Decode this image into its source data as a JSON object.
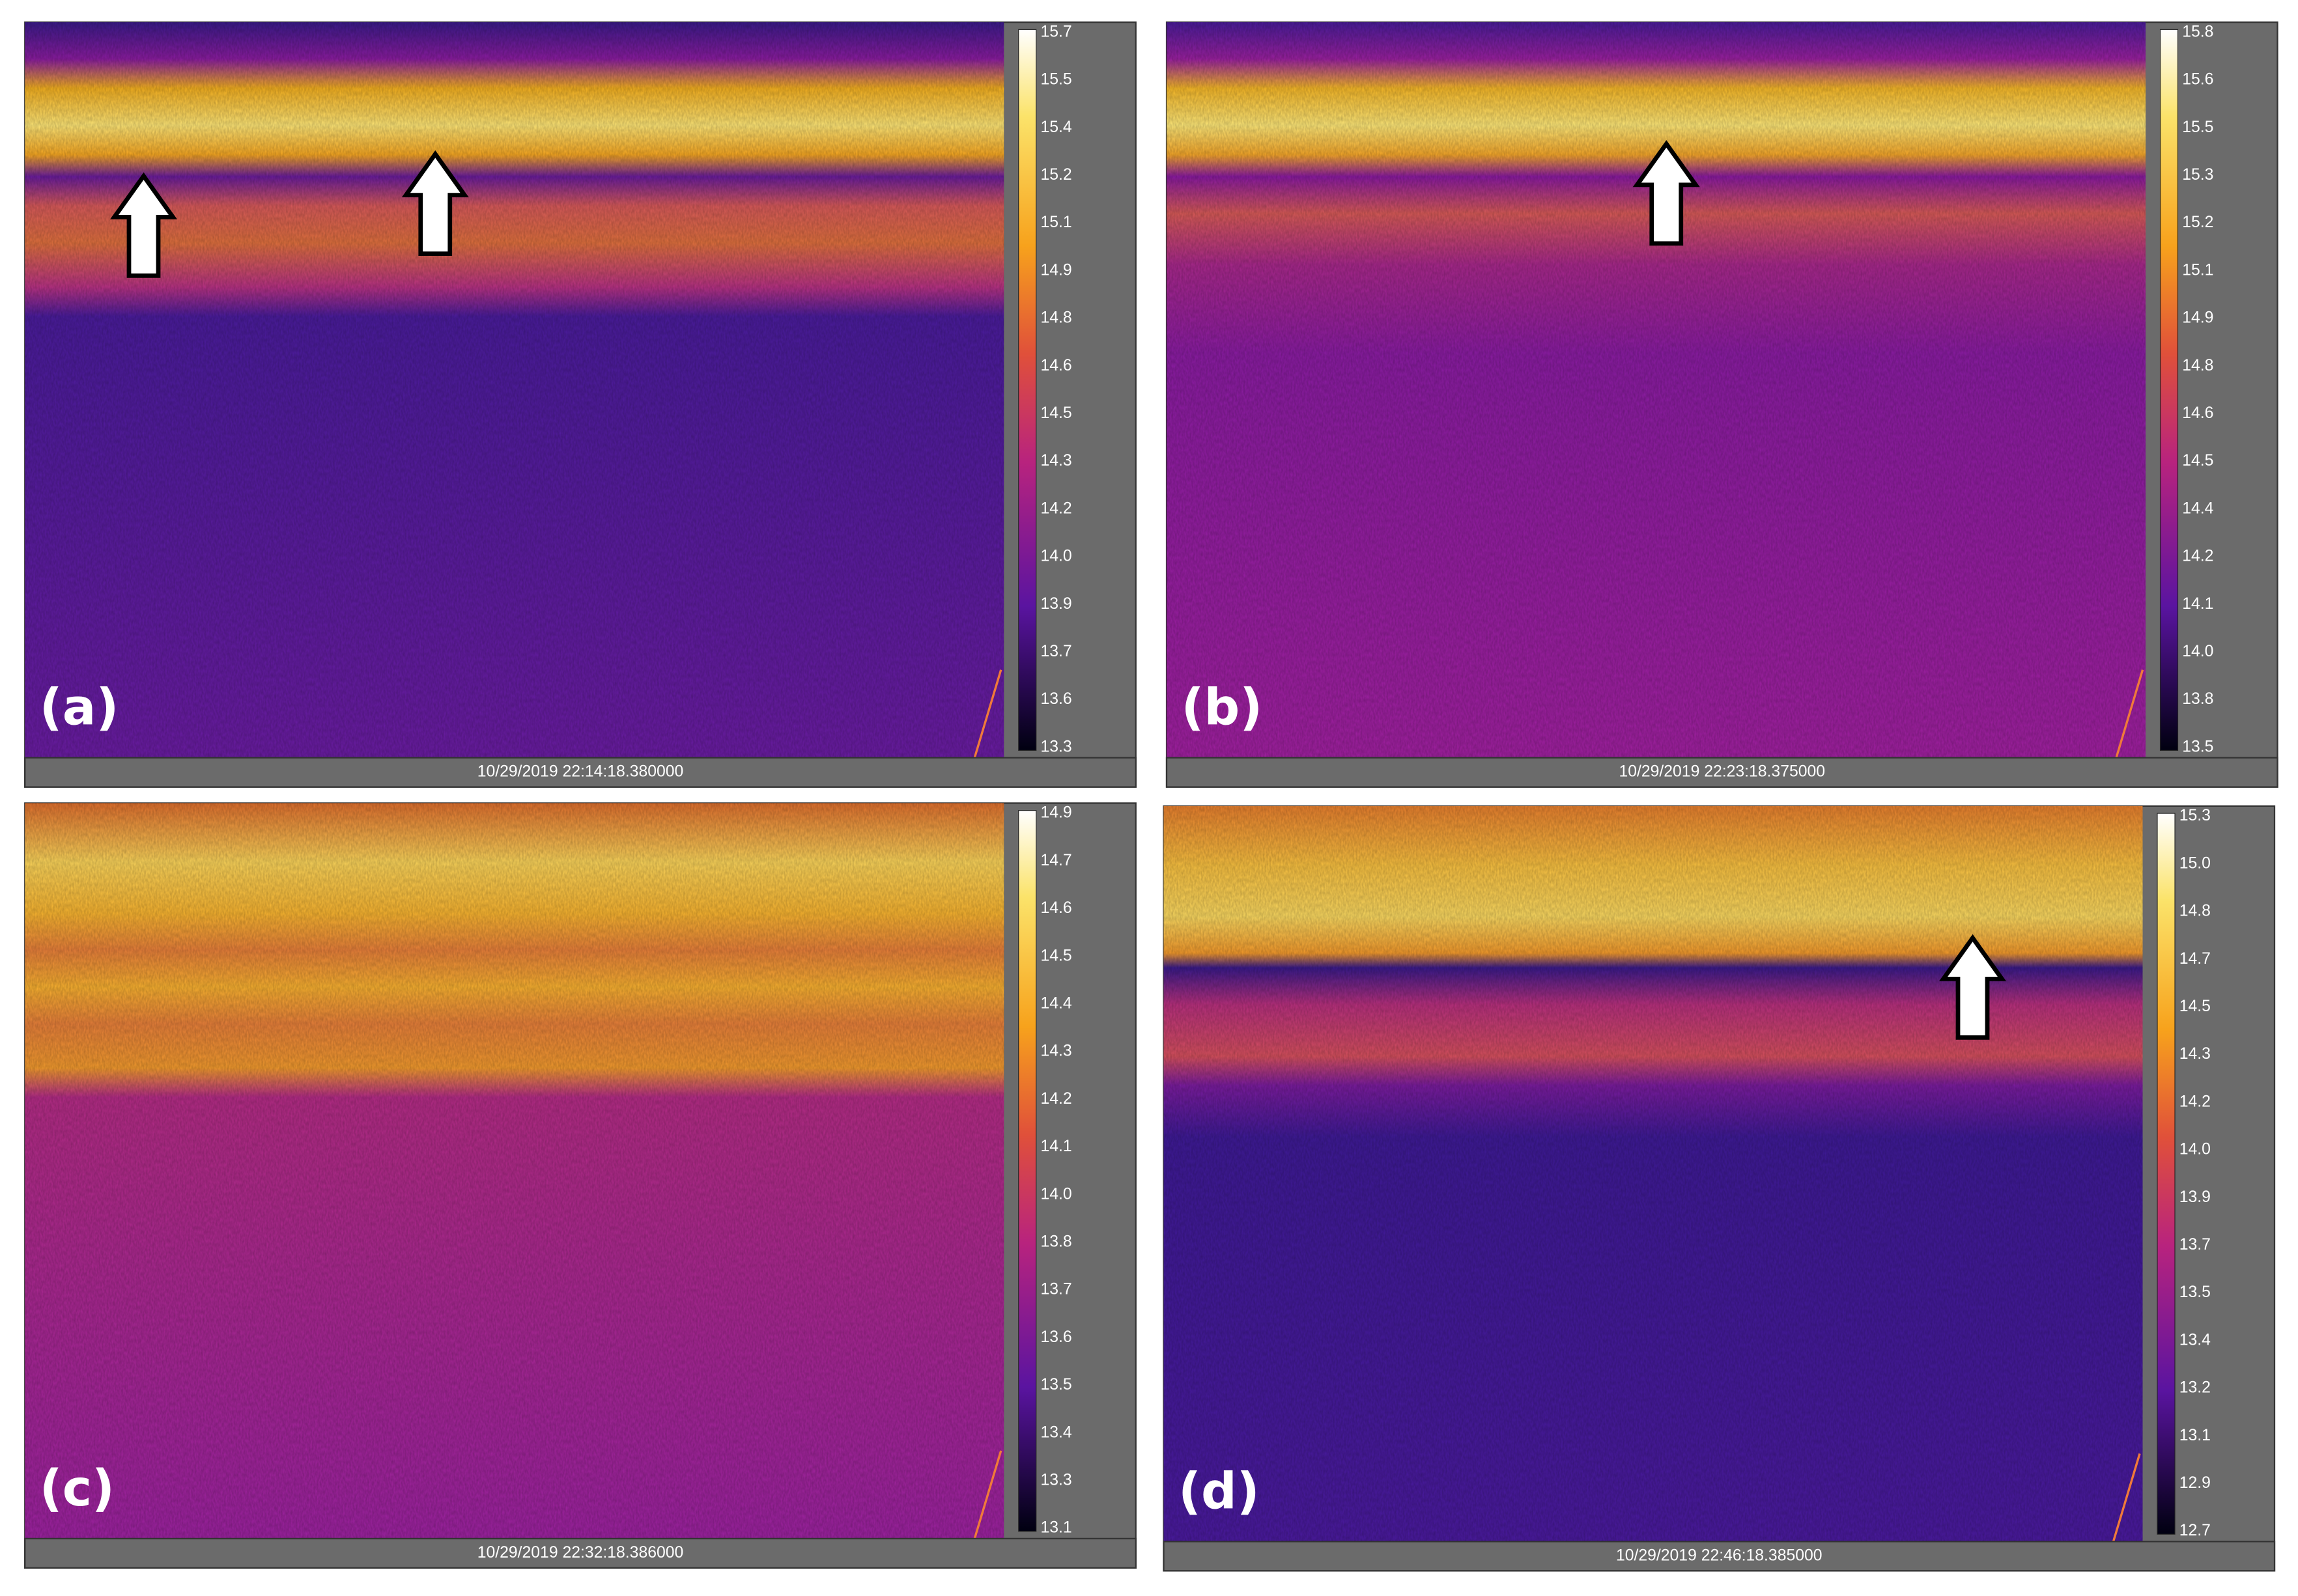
{
  "panels": [
    {
      "label": "(a)",
      "timestamp": "10/29/2019 22:14:18.380000",
      "colorbar_ticks": [
        "15.7",
        "15.5",
        "15.4",
        "15.2",
        "15.1",
        "14.9",
        "14.8",
        "14.6",
        "14.5",
        "14.3",
        "14.2",
        "14.0",
        "13.9",
        "13.7",
        "13.6",
        "13.3"
      ]
    },
    {
      "label": "(b)",
      "timestamp": "10/29/2019 22:23:18.375000",
      "colorbar_ticks": [
        "15.8",
        "15.6",
        "15.5",
        "15.3",
        "15.2",
        "15.1",
        "14.9",
        "14.8",
        "14.6",
        "14.5",
        "14.4",
        "14.2",
        "14.1",
        "14.0",
        "13.8",
        "13.5"
      ]
    },
    {
      "label": "(c)",
      "timestamp": "10/29/2019 22:32:18.386000",
      "colorbar_ticks": [
        "14.9",
        "14.7",
        "14.6",
        "14.5",
        "14.4",
        "14.3",
        "14.2",
        "14.1",
        "14.0",
        "13.8",
        "13.7",
        "13.6",
        "13.5",
        "13.4",
        "13.3",
        "13.1"
      ]
    },
    {
      "label": "(d)",
      "timestamp": "10/29/2019 22:46:18.385000",
      "colorbar_ticks": [
        "15.3",
        "15.0",
        "14.8",
        "14.7",
        "14.5",
        "14.3",
        "14.2",
        "14.0",
        "13.9",
        "13.7",
        "13.5",
        "13.4",
        "13.2",
        "13.1",
        "12.9",
        "12.7"
      ]
    }
  ]
}
